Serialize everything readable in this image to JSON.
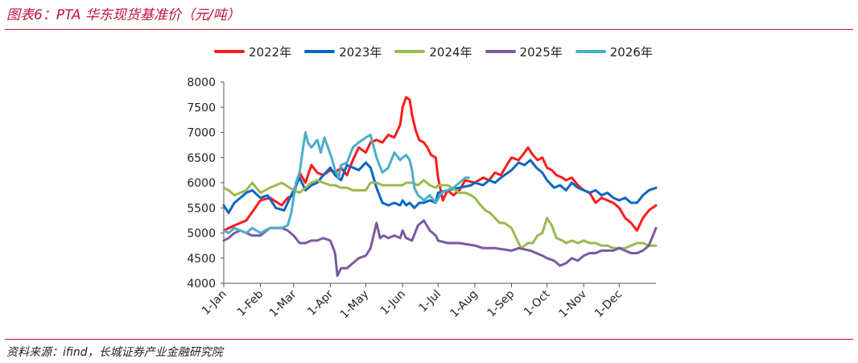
{
  "title": "图表6：PTA 华东现货基准价（元/吨）",
  "source": "资料来源：ifind，长城证券产业金融研究院",
  "chart_data": {
    "type": "line",
    "title": "图表6：PTA 华东现货基准价（元/吨）",
    "xlabel": "",
    "ylabel": "",
    "x_tick_labels": [
      "1-Jan",
      "1-Feb",
      "1-Mar",
      "1-Apr",
      "1-May",
      "1-Jun",
      "1-Jul",
      "1-Aug",
      "1-Sep",
      "1-Oct",
      "1-Nov",
      "1-Dec"
    ],
    "x_tick_days": [
      1,
      32,
      60,
      91,
      121,
      152,
      182,
      213,
      244,
      274,
      305,
      335
    ],
    "xlim": [
      1,
      366
    ],
    "ylim": [
      4000,
      8000
    ],
    "y_ticks": [
      4000,
      4500,
      5000,
      5500,
      6000,
      6500,
      7000,
      7500,
      8000
    ],
    "grid": false,
    "legend_position": "top",
    "series": [
      {
        "name": "2022年",
        "color": "#ff1a1a",
        "x": [
          1,
          10,
          20,
          32,
          40,
          50,
          55,
          60,
          65,
          70,
          75,
          80,
          85,
          91,
          95,
          100,
          105,
          110,
          115,
          121,
          125,
          130,
          135,
          140,
          145,
          150,
          152,
          155,
          158,
          160,
          163,
          166,
          170,
          173,
          176,
          180,
          182,
          186,
          190,
          195,
          200,
          205,
          213,
          220,
          225,
          230,
          235,
          240,
          244,
          250,
          255,
          258,
          262,
          266,
          270,
          274,
          278,
          282,
          287,
          290,
          295,
          300,
          305,
          310,
          315,
          320,
          325,
          330,
          335,
          340,
          345,
          350,
          355,
          360,
          366
        ],
        "y": [
          5050,
          5150,
          5250,
          5650,
          5700,
          5550,
          5700,
          5750,
          6200,
          6000,
          6350,
          6200,
          6150,
          6250,
          6200,
          6300,
          6150,
          6450,
          6700,
          6600,
          6800,
          6850,
          6800,
          6950,
          6900,
          7150,
          7500,
          7700,
          7650,
          7350,
          7050,
          6850,
          6800,
          6700,
          6550,
          6500,
          6100,
          5650,
          5850,
          5750,
          5850,
          6050,
          6000,
          6100,
          6050,
          6200,
          6150,
          6350,
          6500,
          6450,
          6600,
          6700,
          6550,
          6450,
          6500,
          6300,
          6250,
          6150,
          6100,
          6050,
          6100,
          5950,
          5850,
          5800,
          5600,
          5700,
          5650,
          5600,
          5500,
          5300,
          5200,
          5050,
          5300,
          5450,
          5550
        ]
      },
      {
        "name": "2023年",
        "color": "#0a67bf",
        "x": [
          1,
          5,
          10,
          15,
          20,
          25,
          32,
          38,
          45,
          52,
          60,
          65,
          70,
          75,
          80,
          85,
          91,
          95,
          100,
          105,
          110,
          115,
          121,
          125,
          130,
          135,
          140,
          145,
          150,
          152,
          155,
          158,
          162,
          166,
          170,
          175,
          180,
          182,
          190,
          200,
          210,
          213,
          220,
          225,
          230,
          235,
          244,
          250,
          255,
          260,
          265,
          270,
          274,
          280,
          285,
          290,
          295,
          300,
          305,
          310,
          315,
          320,
          325,
          330,
          335,
          340,
          345,
          350,
          355,
          360,
          366
        ],
        "y": [
          5550,
          5400,
          5600,
          5700,
          5800,
          5850,
          5700,
          5750,
          5500,
          5450,
          5850,
          6100,
          5850,
          5950,
          6000,
          6150,
          6300,
          6150,
          6050,
          6350,
          6300,
          6250,
          6400,
          6300,
          5900,
          5600,
          5550,
          5600,
          5550,
          5650,
          5550,
          5600,
          5500,
          5600,
          5600,
          5650,
          5600,
          5800,
          5850,
          5900,
          5950,
          6000,
          5950,
          6050,
          6000,
          6100,
          6250,
          6400,
          6350,
          6450,
          6300,
          6200,
          6050,
          5900,
          5950,
          5850,
          6000,
          5900,
          5850,
          5800,
          5850,
          5750,
          5800,
          5700,
          5650,
          5700,
          5600,
          5600,
          5750,
          5850,
          5900
        ]
      },
      {
        "name": "2024年",
        "color": "#9aba4e",
        "x": [
          1,
          5,
          10,
          15,
          20,
          25,
          32,
          40,
          50,
          60,
          65,
          70,
          75,
          80,
          85,
          91,
          95,
          100,
          105,
          110,
          115,
          121,
          125,
          130,
          135,
          140,
          145,
          150,
          152,
          155,
          160,
          165,
          170,
          175,
          180,
          182,
          190,
          200,
          205,
          210,
          213,
          218,
          222,
          226,
          230,
          234,
          238,
          244,
          248,
          252,
          258,
          262,
          266,
          270,
          274,
          278,
          282,
          287,
          290,
          295,
          300,
          305,
          310,
          315,
          320,
          325,
          330,
          335,
          340,
          345,
          350,
          355,
          360,
          366
        ],
        "y": [
          5900,
          5850,
          5750,
          5800,
          5850,
          6000,
          5800,
          5900,
          6000,
          5850,
          5800,
          5900,
          6000,
          6050,
          6000,
          5950,
          5950,
          5900,
          5900,
          5850,
          5850,
          5850,
          6000,
          6000,
          5950,
          5950,
          5950,
          5950,
          5950,
          6000,
          6000,
          5950,
          6050,
          5950,
          5900,
          5950,
          5950,
          5800,
          5800,
          5750,
          5700,
          5550,
          5450,
          5400,
          5300,
          5200,
          5200,
          5100,
          4900,
          4700,
          4800,
          4800,
          4950,
          5000,
          5300,
          5150,
          4900,
          4850,
          4800,
          4850,
          4800,
          4850,
          4800,
          4800,
          4750,
          4750,
          4700,
          4700,
          4700,
          4750,
          4800,
          4800,
          4750,
          4750
        ]
      },
      {
        "name": "2025年",
        "color": "#7a5aa0",
        "x": [
          1,
          5,
          10,
          15,
          20,
          25,
          32,
          40,
          50,
          55,
          60,
          65,
          70,
          75,
          80,
          85,
          91,
          95,
          97,
          100,
          105,
          110,
          115,
          121,
          125,
          130,
          133,
          136,
          140,
          145,
          150,
          152,
          155,
          160,
          165,
          170,
          175,
          180,
          182,
          190,
          200,
          213,
          220,
          230,
          244,
          250,
          260,
          265,
          270,
          274,
          280,
          285,
          290,
          295,
          300,
          305,
          310,
          315,
          320,
          325,
          330,
          335,
          340,
          345,
          350,
          355,
          360,
          366
        ],
        "y": [
          4850,
          4900,
          5000,
          5050,
          5000,
          4950,
          4950,
          5100,
          5100,
          5050,
          4950,
          4800,
          4800,
          4850,
          4850,
          4900,
          4850,
          4600,
          4150,
          4300,
          4300,
          4400,
          4500,
          4550,
          4700,
          5200,
          4900,
          4950,
          4900,
          4950,
          4900,
          5050,
          4900,
          4850,
          5150,
          5250,
          5050,
          4950,
          4850,
          4800,
          4800,
          4750,
          4700,
          4700,
          4650,
          4700,
          4650,
          4600,
          4550,
          4500,
          4450,
          4350,
          4400,
          4500,
          4450,
          4550,
          4600,
          4600,
          4650,
          4650,
          4650,
          4700,
          4650,
          4600,
          4600,
          4650,
          4750,
          5100
        ]
      },
      {
        "name": "2026年",
        "color": "#4aaec9",
        "x": [
          1,
          5,
          10,
          15,
          20,
          25,
          32,
          40,
          50,
          55,
          58,
          62,
          65,
          68,
          70,
          72,
          75,
          80,
          83,
          86,
          89,
          92,
          95,
          98,
          100,
          105,
          110,
          115,
          121,
          125,
          130,
          135,
          140,
          145,
          150,
          152,
          155,
          158,
          160,
          162,
          165,
          168,
          170,
          175,
          180,
          185,
          190,
          195,
          200,
          205,
          208
        ],
        "y": [
          5050,
          5000,
          5100,
          5050,
          5000,
          5100,
          5000,
          5100,
          5100,
          5150,
          5400,
          6000,
          6200,
          6700,
          7000,
          6800,
          6700,
          6850,
          6600,
          6900,
          6700,
          6500,
          6250,
          6100,
          6350,
          6400,
          6700,
          6800,
          6900,
          6950,
          6500,
          6200,
          6300,
          6600,
          6450,
          6500,
          6550,
          6450,
          6250,
          5900,
          5750,
          5700,
          5650,
          5750,
          5600,
          5800,
          5850,
          5900,
          6000,
          6100,
          6100
        ]
      }
    ]
  }
}
